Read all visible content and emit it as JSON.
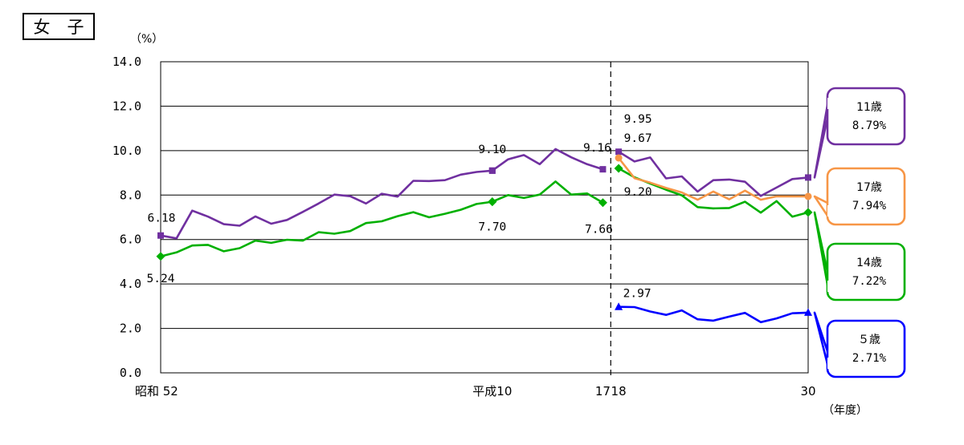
{
  "title": "女　子",
  "chart_data": {
    "type": "line",
    "ylabel": "（%）",
    "xlabel": "（年度）",
    "ylim": [
      0,
      14
    ],
    "yticks": [
      "0.0",
      "2.0",
      "4.0",
      "6.0",
      "8.0",
      "10.0",
      "12.0",
      "14.0"
    ],
    "xtick_labels": [
      {
        "x": 1,
        "label": "昭和 52"
      },
      {
        "x": 22,
        "label": "平成10"
      },
      {
        "x": 29,
        "label": "17"
      },
      {
        "x": 30,
        "label": "18"
      },
      {
        "x": 42,
        "label": "30"
      }
    ],
    "grid": "horizontal",
    "series": [
      {
        "name": "11歳",
        "color": "#7030a0",
        "marker": "square",
        "segments": [
          {
            "x": [
              1,
              2,
              3,
              4,
              5,
              6,
              7,
              8,
              9,
              10,
              11,
              12,
              13,
              14,
              15,
              16,
              17,
              18,
              19,
              20,
              21,
              22
            ],
            "y": [
              6.18,
              6.05,
              7.3,
              7.03,
              6.69,
              6.62,
              7.04,
              6.71,
              6.88,
              7.24,
              7.62,
              8.02,
              7.95,
              7.62,
              8.06,
              7.93,
              8.64,
              8.63,
              8.67,
              8.92,
              9.04,
              9.1
            ]
          },
          {
            "x": [
              22,
              23,
              24,
              25,
              26,
              27,
              28,
              29
            ],
            "y": [
              9.1,
              9.61,
              9.8,
              9.39,
              10.07,
              9.7,
              9.39,
              9.16
            ]
          },
          {
            "x": [
              30,
              31,
              32,
              33,
              34,
              35,
              36,
              37,
              38,
              39,
              40,
              41,
              42
            ],
            "y": [
              9.95,
              9.51,
              9.69,
              8.75,
              8.84,
              8.16,
              8.67,
              8.7,
              8.6,
              7.96,
              8.34,
              8.72,
              8.79
            ]
          }
        ]
      },
      {
        "name": "14歳",
        "color": "#00b000",
        "marker": "diamond",
        "segments": [
          {
            "x": [
              1,
              2,
              3,
              4,
              5,
              6,
              7,
              8,
              9,
              10,
              11,
              12,
              13,
              14,
              15,
              16,
              17,
              18,
              19,
              20,
              21,
              22
            ],
            "y": [
              5.24,
              5.42,
              5.73,
              5.76,
              5.47,
              5.61,
              5.95,
              5.85,
              5.99,
              5.95,
              6.33,
              6.26,
              6.38,
              6.74,
              6.82,
              7.05,
              7.23,
              7.0,
              7.16,
              7.34,
              7.6,
              7.7
            ]
          },
          {
            "x": [
              22,
              23,
              24,
              25,
              26,
              27,
              28,
              29
            ],
            "y": [
              7.7,
              8.0,
              7.87,
              8.02,
              8.61,
              8.02,
              8.07,
              7.66
            ]
          },
          {
            "x": [
              30,
              31,
              32,
              33,
              34,
              35,
              36,
              37,
              38,
              39,
              40,
              41,
              42
            ],
            "y": [
              9.2,
              8.8,
              8.52,
              8.24,
              7.99,
              7.46,
              7.4,
              7.42,
              7.7,
              7.21,
              7.73,
              7.03,
              7.22
            ]
          }
        ]
      },
      {
        "name": "17歳",
        "color": "#f79646",
        "marker": "circle",
        "segments": [
          {
            "x": [
              30,
              31,
              32,
              33,
              34,
              35,
              36,
              37,
              38,
              39,
              40,
              41,
              42
            ],
            "y": [
              9.67,
              8.76,
              8.56,
              8.32,
              8.12,
              7.79,
              8.16,
              7.81,
              8.2,
              7.79,
              7.94,
              7.94,
              7.94
            ]
          }
        ]
      },
      {
        "name": "５歳",
        "color": "#0000ff",
        "marker": "triangle",
        "segments": [
          {
            "x": [
              30,
              31,
              32,
              33,
              34,
              35,
              36,
              37,
              38,
              39,
              40,
              41,
              42
            ],
            "y": [
              2.97,
              2.96,
              2.76,
              2.61,
              2.81,
              2.41,
              2.35,
              2.53,
              2.7,
              2.28,
              2.45,
              2.68,
              2.71
            ]
          }
        ]
      }
    ],
    "data_labels": [
      {
        "text": "6.18",
        "x": 1,
        "y": 6.18,
        "series": "11歳"
      },
      {
        "text": "5.24",
        "x": 1,
        "y": 5.24,
        "series": "14歳"
      },
      {
        "text": "9.10",
        "x": 22,
        "y": 9.1,
        "series": "11歳"
      },
      {
        "text": "7.70",
        "x": 22,
        "y": 7.7,
        "series": "14歳"
      },
      {
        "text": "9.16",
        "x": 29,
        "y": 9.16,
        "series": "11歳"
      },
      {
        "text": "7.66",
        "x": 29,
        "y": 7.66,
        "series": "14歳"
      },
      {
        "text": "9.95",
        "x": 30,
        "y": 9.95,
        "series": "11歳"
      },
      {
        "text": "9.67",
        "x": 30,
        "y": 9.67,
        "series": "17歳"
      },
      {
        "text": "9.20",
        "x": 30,
        "y": 9.2,
        "series": "14歳"
      },
      {
        "text": "2.97",
        "x": 30,
        "y": 2.97,
        "series": "５歳"
      }
    ],
    "callouts": [
      {
        "series": "11歳",
        "label": "11歳",
        "value": "8.79%"
      },
      {
        "series": "17歳",
        "label": "17歳",
        "value": "7.94%"
      },
      {
        "series": "14歳",
        "label": "14歳",
        "value": "7.22%"
      },
      {
        "series": "５歳",
        "label": "５歳",
        "value": "2.71%"
      }
    ],
    "break_between": [
      29,
      30
    ]
  }
}
